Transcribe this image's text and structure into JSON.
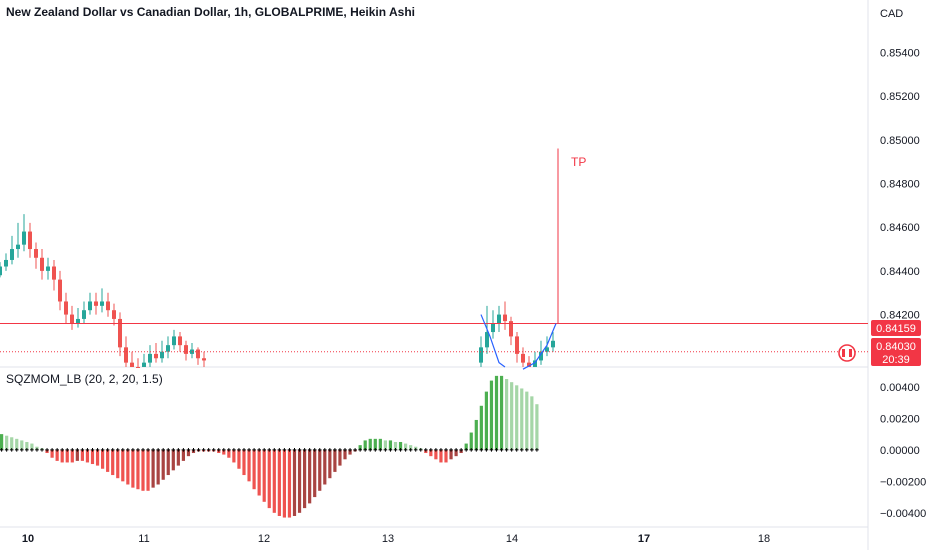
{
  "header": {
    "title": "New Zealand Dollar vs Canadian Dollar, 1h, GLOBALPRIME, Heikin Ashi",
    "currency": "CAD"
  },
  "price_badges": {
    "line_price": "0.84159",
    "current_price": "0.84030",
    "countdown": "20:39"
  },
  "annotation": {
    "text": "TP"
  },
  "indicator": {
    "title": "SQZMOM_LB (20, 2, 20, 1.5)"
  },
  "colors": {
    "up": "#26a69a",
    "down": "#ef5350",
    "mom_up_strong": "#4caf50",
    "mom_up_weak": "#a5d6a7",
    "mom_down_strong": "#ef5350",
    "mom_down_weak": "#a94442",
    "line_red": "#f23645",
    "channel_blue": "#2962ff"
  },
  "chart_data": [
    {
      "type": "candlestick",
      "ylim": [
        0.8396,
        0.8564
      ],
      "y_ticks": [
        "0.85400",
        "0.85200",
        "0.85000",
        "0.84800",
        "0.84600",
        "0.84400",
        "0.84200"
      ],
      "x_ticks": [
        {
          "label": "10",
          "bold": true
        },
        {
          "label": "11",
          "bold": false
        },
        {
          "label": "12",
          "bold": false
        },
        {
          "label": "13",
          "bold": false
        },
        {
          "label": "14",
          "bold": false
        },
        {
          "label": "17",
          "bold": true
        },
        {
          "label": "18",
          "bold": false
        }
      ],
      "horizontal_lines": [
        0.84159,
        0.8403
      ],
      "tp_level": 0.8496,
      "candles": [
        [
          0.8438,
          0.8442,
          0.8437,
          0.8444
        ],
        [
          0.8442,
          0.8445,
          0.844,
          0.8448
        ],
        [
          0.8445,
          0.845,
          0.8443,
          0.8456
        ],
        [
          0.845,
          0.8452,
          0.8446,
          0.8462
        ],
        [
          0.8452,
          0.8458,
          0.8449,
          0.8466
        ],
        [
          0.8458,
          0.845,
          0.8446,
          0.8462
        ],
        [
          0.845,
          0.8446,
          0.8441,
          0.8453
        ],
        [
          0.8446,
          0.844,
          0.8436,
          0.845
        ],
        [
          0.844,
          0.8442,
          0.8436,
          0.8446
        ],
        [
          0.8442,
          0.8436,
          0.8431,
          0.8445
        ],
        [
          0.8436,
          0.8426,
          0.8422,
          0.844
        ],
        [
          0.8426,
          0.842,
          0.8416,
          0.843
        ],
        [
          0.842,
          0.8416,
          0.8413,
          0.8424
        ],
        [
          0.8416,
          0.8418,
          0.8414,
          0.8423
        ],
        [
          0.8418,
          0.8422,
          0.8416,
          0.8426
        ],
        [
          0.8422,
          0.8426,
          0.842,
          0.843
        ],
        [
          0.8426,
          0.8424,
          0.842,
          0.843
        ],
        [
          0.8424,
          0.8426,
          0.8421,
          0.8432
        ],
        [
          0.8426,
          0.8422,
          0.8419,
          0.843
        ],
        [
          0.8422,
          0.8418,
          0.8415,
          0.8425
        ],
        [
          0.8418,
          0.8405,
          0.8401,
          0.8421
        ],
        [
          0.8405,
          0.8398,
          0.8395,
          0.841
        ],
        [
          0.8398,
          0.8396,
          0.8394,
          0.8403
        ],
        [
          0.8396,
          0.8395,
          0.8393,
          0.84
        ],
        [
          0.8395,
          0.8398,
          0.8394,
          0.8402
        ],
        [
          0.8398,
          0.8402,
          0.8396,
          0.8406
        ],
        [
          0.8402,
          0.84,
          0.8398,
          0.8407
        ],
        [
          0.84,
          0.8403,
          0.8398,
          0.8408
        ],
        [
          0.8403,
          0.8406,
          0.84,
          0.841
        ],
        [
          0.8406,
          0.841,
          0.8404,
          0.8413
        ],
        [
          0.841,
          0.8406,
          0.8403,
          0.8412
        ],
        [
          0.8406,
          0.8402,
          0.8399,
          0.8408
        ],
        [
          0.8402,
          0.8404,
          0.84,
          0.8407
        ],
        [
          0.8404,
          0.84,
          0.8397,
          0.8405
        ],
        [
          0.84,
          0.8399,
          0.8396,
          0.8403
        ]
      ],
      "candles_right": [
        [
          0.8398,
          0.8405,
          0.8396,
          0.841
        ],
        [
          0.8405,
          0.8412,
          0.8402,
          0.8424
        ],
        [
          0.8412,
          0.8416,
          0.8409,
          0.8422
        ],
        [
          0.8416,
          0.842,
          0.8412,
          0.8424
        ],
        [
          0.842,
          0.8417,
          0.8413,
          0.8426
        ],
        [
          0.8417,
          0.841,
          0.8406,
          0.8419
        ],
        [
          0.841,
          0.8402,
          0.8398,
          0.8412
        ],
        [
          0.8402,
          0.8398,
          0.8395,
          0.8405
        ],
        [
          0.8398,
          0.8396,
          0.8394,
          0.8401
        ],
        [
          0.8396,
          0.8399,
          0.8394,
          0.8403
        ],
        [
          0.8399,
          0.8403,
          0.8397,
          0.8408
        ],
        [
          0.8403,
          0.8405,
          0.8401,
          0.841
        ],
        [
          0.8405,
          0.8408,
          0.8403,
          0.8412
        ]
      ],
      "channel_curves": [
        [
          [
            0.842,
            0
          ],
          [
            0.841,
            1.5
          ],
          [
            0.8398,
            3
          ],
          [
            0.8396,
            4
          ]
        ],
        [
          [
            0.8395,
            7
          ],
          [
            0.8398,
            9
          ],
          [
            0.8406,
            11
          ],
          [
            0.84159,
            12.5
          ]
        ]
      ]
    },
    {
      "type": "bar",
      "ylim": [
        -0.0049,
        0.0052
      ],
      "y_ticks": [
        "0.00400",
        "0.00200",
        "0.00000",
        "−0.00200",
        "−0.00400"
      ],
      "values": [
        0.001,
        0.0009,
        0.0008,
        0.0007,
        0.0006,
        0.0005,
        0.0004,
        0.0002,
        0.0001,
        -0.0002,
        -0.0005,
        -0.0007,
        -0.0008,
        -0.0008,
        -0.0008,
        -0.0007,
        -0.0007,
        -0.0008,
        -0.0009,
        -0.001,
        -0.0012,
        -0.0014,
        -0.0016,
        -0.0018,
        -0.002,
        -0.0022,
        -0.0024,
        -0.0025,
        -0.0026,
        -0.0026,
        -0.0024,
        -0.0022,
        -0.0019,
        -0.0016,
        -0.0013,
        -0.001,
        -0.0007,
        -0.0004,
        -0.0002,
        -0.0001,
        -0.0001,
        -0.0001,
        -0.0001,
        -0.0002,
        -0.0003,
        -0.0005,
        -0.0008,
        -0.0012,
        -0.0016,
        -0.002,
        -0.0025,
        -0.0029,
        -0.0033,
        -0.0037,
        -0.004,
        -0.0042,
        -0.0043,
        -0.0043,
        -0.0042,
        -0.004,
        -0.0037,
        -0.0034,
        -0.003,
        -0.0026,
        -0.0022,
        -0.0018,
        -0.0014,
        -0.001,
        -0.0006,
        -0.0003,
        -0.0001,
        0.0003,
        0.0006,
        0.0007,
        0.0007,
        0.0007,
        0.0006,
        0.0006,
        0.0005,
        0.0005,
        0.0004,
        0.0003,
        0.0002,
        0.0001,
        -0.0002,
        -0.0004,
        -0.0006,
        -0.0008,
        -0.0008,
        -0.0006,
        -0.0004,
        -0.0002,
        0.0004,
        0.0011,
        0.0019,
        0.0028,
        0.0037,
        0.0044,
        0.0047,
        0.0047,
        0.0045,
        0.0043,
        0.0041,
        0.0039,
        0.0037,
        0.0034,
        0.0029
      ]
    }
  ]
}
